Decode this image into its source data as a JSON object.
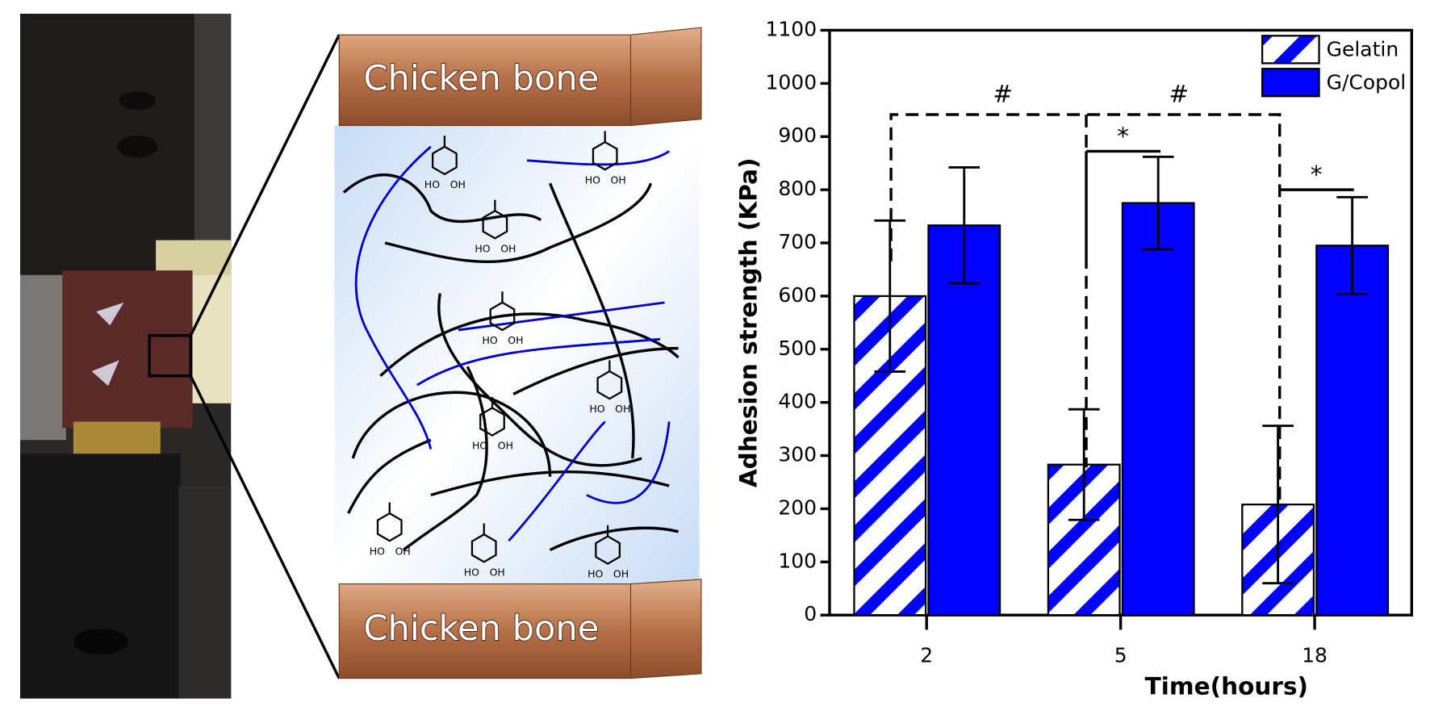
{
  "schematic": {
    "top_label": "Chicken bone",
    "bottom_label": "Chicken bone",
    "hydroxyl_left": "HO",
    "hydroxyl_right": "OH"
  },
  "chart_data": {
    "type": "bar",
    "xlabel": "Time(hours)",
    "ylabel": "Adhesion strength (KPa)",
    "categories": [
      "2",
      "5",
      "18"
    ],
    "series": [
      {
        "name": "Gelatin",
        "color": "#0000ff",
        "pattern": "diagonal-stripes",
        "values": [
          600,
          283,
          208
        ],
        "errors": [
          142,
          104,
          148
        ]
      },
      {
        "name": "G/Copol",
        "color": "#0000ff",
        "values": [
          733,
          775,
          695
        ],
        "errors": [
          109,
          87,
          91
        ]
      }
    ],
    "ylim": [
      0,
      1100
    ],
    "yticks": [
      0,
      100,
      200,
      300,
      400,
      500,
      600,
      700,
      800,
      900,
      1000,
      1100
    ],
    "legend": "top-right",
    "annotations": [
      "#",
      "#",
      "*",
      "*"
    ]
  }
}
